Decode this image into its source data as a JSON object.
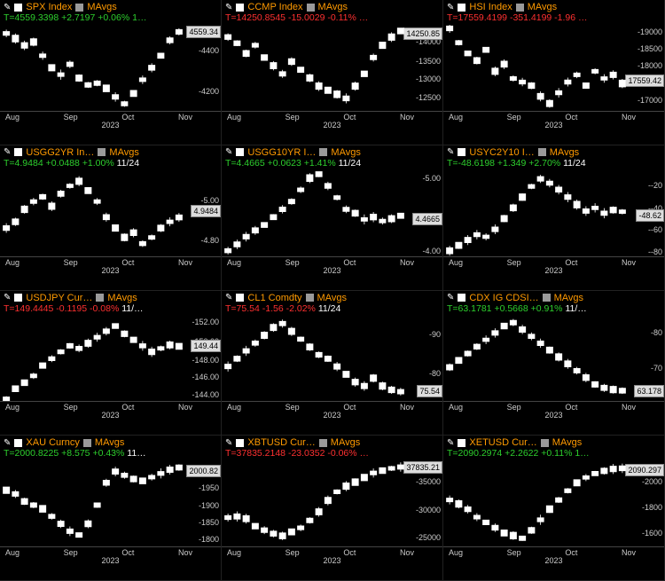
{
  "colors": {
    "bg": "#000000",
    "title": "#ff9a00",
    "up": "#2dcf2d",
    "down": "#ff3030",
    "axis": "#cccccc",
    "candle": "#ffffff",
    "tag_bg": "#dddddd"
  },
  "x_axis": {
    "months": [
      "Aug",
      "Sep",
      "Oct",
      "Nov"
    ],
    "year": "2023"
  },
  "panels": [
    {
      "title": "SPX Index",
      "mavgs": "MAvgs",
      "last": "T=4559.3398",
      "chg": "+2.7197",
      "pct": "+0.06%",
      "extra": "1…",
      "dir": "up",
      "yticks": [
        "4400",
        "4200"
      ],
      "ytick_pos": [
        0.3,
        0.78
      ],
      "tag": "4559.34",
      "tag_pos": 0.08,
      "type": "candlestick",
      "ylim": [
        4100,
        4600
      ],
      "series": [
        4550,
        4520,
        4480,
        4500,
        4420,
        4350,
        4310,
        4370,
        4290,
        4250,
        4260,
        4230,
        4180,
        4140,
        4200,
        4280,
        4350,
        4420,
        4510,
        4559
      ]
    },
    {
      "title": "CCMP Index",
      "mavgs": "MAvgs",
      "last": "T=14250.8545",
      "chg": "-15.0029",
      "pct": "-0.11%",
      "extra": "…",
      "dir": "down",
      "yticks": [
        "14000",
        "13500",
        "13000",
        "12500"
      ],
      "ytick_pos": [
        0.2,
        0.42,
        0.63,
        0.85
      ],
      "tag": "14250.85",
      "tag_pos": 0.1,
      "type": "candlestick",
      "ylim": [
        12300,
        14400
      ],
      "series": [
        14100,
        13950,
        13700,
        13900,
        13600,
        13400,
        13200,
        13500,
        13300,
        13100,
        12900,
        12800,
        12700,
        12600,
        12900,
        13200,
        13600,
        13900,
        14100,
        14250
      ]
    },
    {
      "title": "HSI Index",
      "mavgs": "MAvgs",
      "last": "T=17559.4199",
      "chg": "-351.4199",
      "pct": "-1.96",
      "extra": "…",
      "dir": "down",
      "yticks": [
        "19000",
        "18500",
        "18000",
        "17000"
      ],
      "ytick_pos": [
        0.08,
        0.28,
        0.48,
        0.88
      ],
      "tag": "17559.42",
      "tag_pos": 0.65,
      "type": "candlestick",
      "ylim": [
        16800,
        19200
      ],
      "series": [
        19100,
        18700,
        18400,
        18200,
        18500,
        17900,
        18100,
        17700,
        17600,
        17500,
        17200,
        17000,
        17300,
        17600,
        17800,
        17500,
        17900,
        17700,
        17800,
        17559
      ]
    },
    {
      "title": "USGG2YR In…",
      "mavgs": "MAvgs",
      "last": "T=4.9484",
      "chg": "+0.0488",
      "pct": "+1.00%",
      "extra": "11/24",
      "dir": "up",
      "extra_white": true,
      "yticks": [
        "5.00",
        "4.80"
      ],
      "ytick_pos": [
        0.35,
        0.82
      ],
      "tag": "4.9484",
      "tag_pos": 0.48,
      "type": "candlestick",
      "ylim": [
        4.7,
        5.25
      ],
      "series": [
        4.88,
        4.92,
        5.0,
        5.05,
        5.08,
        5.02,
        5.1,
        5.15,
        5.18,
        5.12,
        5.05,
        4.95,
        4.88,
        4.82,
        4.85,
        4.78,
        4.82,
        4.88,
        4.92,
        4.948
      ]
    },
    {
      "title": "USGG10YR I…",
      "mavgs": "MAvgs",
      "last": "T=4.4665",
      "chg": "+0.0623",
      "pct": "+1.41%",
      "extra": "11/24",
      "dir": "up",
      "extra_white": true,
      "yticks": [
        "5.00",
        "4.50",
        "4.00"
      ],
      "ytick_pos": [
        0.1,
        0.54,
        0.94
      ],
      "tag": "4.4665",
      "tag_pos": 0.57,
      "type": "candlestick",
      "ylim": [
        3.95,
        5.05
      ],
      "series": [
        4.02,
        4.1,
        4.2,
        4.28,
        4.35,
        4.45,
        4.55,
        4.65,
        4.8,
        4.95,
        5.0,
        4.85,
        4.7,
        4.55,
        4.5,
        4.42,
        4.45,
        4.4,
        4.43,
        4.467
      ]
    },
    {
      "title": "USYC2Y10 I…",
      "mavgs": "MAvgs",
      "last": "T=-48.6198",
      "chg": "+1.349",
      "pct": "+2.70%",
      "extra": "11/24",
      "dir": "up",
      "extra_white": true,
      "yticks": [
        "-20",
        "-40",
        "-60",
        "-80"
      ],
      "ytick_pos": [
        0.18,
        0.45,
        0.7,
        0.95
      ],
      "tag": "-48.62",
      "tag_pos": 0.53,
      "type": "candlestick",
      "ylim": [
        -90,
        -10
      ],
      "series": [
        -85,
        -80,
        -75,
        -70,
        -72,
        -65,
        -55,
        -45,
        -35,
        -25,
        -18,
        -22,
        -28,
        -35,
        -42,
        -48,
        -45,
        -50,
        -47,
        -48.6
      ]
    },
    {
      "title": "USDJPY Cur…",
      "mavgs": "MAvgs",
      "last": "T=149.4445",
      "chg": "-0.1195",
      "pct": "-0.08%",
      "extra": "11/…",
      "dir": "down",
      "extra_white": true,
      "yticks": [
        "152.00",
        "150.00",
        "148.00",
        "146.00",
        "144.00"
      ],
      "ytick_pos": [
        0.08,
        0.3,
        0.52,
        0.72,
        0.92
      ],
      "tag": "149.44",
      "tag_pos": 0.36,
      "type": "candlestick",
      "ylim": [
        143,
        153
      ],
      "series": [
        143.2,
        144.5,
        145.2,
        146.0,
        147.2,
        148.0,
        148.8,
        149.5,
        149.2,
        149.8,
        150.5,
        151.2,
        151.8,
        150.9,
        150.2,
        149.5,
        148.8,
        149.2,
        149.6,
        149.44
      ]
    },
    {
      "title": "CL1 Comdty",
      "mavgs": "MAvgs",
      "last": "T=75.54",
      "chg": "-1.56",
      "pct": "-2.02%",
      "extra": "11/24",
      "dir": "down",
      "extra_white": true,
      "yticks": [
        "90",
        "80"
      ],
      "ytick_pos": [
        0.22,
        0.68
      ],
      "tag": "75.54",
      "tag_pos": 0.88,
      "type": "candlestick",
      "ylim": [
        73,
        95
      ],
      "series": [
        82,
        84,
        86,
        88,
        90,
        92,
        93,
        91,
        89,
        87,
        85,
        84,
        82,
        80,
        78,
        77,
        79,
        77,
        76,
        75.54
      ]
    },
    {
      "title": "CDX IG CDSI…",
      "mavgs": "MAvgs",
      "last": "T=63.1781",
      "chg": "+0.5668",
      "pct": "+0.91%",
      "extra": "11/…",
      "dir": "up",
      "extra_white": true,
      "yticks": [
        "80",
        "70"
      ],
      "ytick_pos": [
        0.2,
        0.62
      ],
      "tag": "63.178",
      "tag_pos": 0.88,
      "type": "candlestick",
      "ylim": [
        60,
        85
      ],
      "series": [
        70,
        72,
        74,
        76,
        78,
        80,
        82,
        83,
        81,
        79,
        77,
        75,
        73,
        71,
        69,
        67,
        65,
        64,
        63.5,
        63.18
      ]
    },
    {
      "title": "XAU Curncy",
      "mavgs": "MAvgs",
      "last": "T=2000.8225",
      "chg": "+8.575",
      "pct": "+0.43%",
      "extra": "11…",
      "dir": "up",
      "extra_white": true,
      "yticks": [
        "2000",
        "1950",
        "1900",
        "1850",
        "1800"
      ],
      "ytick_pos": [
        0.12,
        0.32,
        0.52,
        0.72,
        0.92
      ],
      "tag": "2000.82",
      "tag_pos": 0.12,
      "type": "candlestick",
      "ylim": [
        1790,
        2020
      ],
      "series": [
        1940,
        1930,
        1910,
        1900,
        1890,
        1870,
        1850,
        1830,
        1820,
        1850,
        1900,
        1960,
        1990,
        1980,
        1970,
        1965,
        1975,
        1985,
        1995,
        2000.8
      ]
    },
    {
      "title": "XBTUSD Cur…",
      "mavgs": "MAvgs",
      "last": "T=37835.2148",
      "chg": "-23.0352",
      "pct": "-0.06%",
      "extra": "…",
      "dir": "down",
      "yticks": [
        "35000",
        "30000",
        "25000"
      ],
      "ytick_pos": [
        0.25,
        0.58,
        0.9
      ],
      "tag": "37835.21",
      "tag_pos": 0.08,
      "type": "candlestick",
      "ylim": [
        24000,
        39000
      ],
      "series": [
        29000,
        29200,
        28800,
        27500,
        26800,
        26200,
        25800,
        26500,
        27200,
        28500,
        30000,
        32000,
        33500,
        34500,
        35200,
        36000,
        36800,
        37200,
        37600,
        37835
      ]
    },
    {
      "title": "XETUSD Cur…",
      "mavgs": "MAvgs",
      "last": "T=2090.2974",
      "chg": "+2.2622",
      "pct": "+0.11%",
      "extra": "1…",
      "dir": "up",
      "yticks": [
        "2000",
        "1800",
        "1600"
      ],
      "ytick_pos": [
        0.25,
        0.55,
        0.85
      ],
      "tag": "2090.297",
      "tag_pos": 0.11,
      "type": "candlestick",
      "ylim": [
        1500,
        2150
      ],
      "series": [
        1850,
        1820,
        1780,
        1720,
        1680,
        1640,
        1600,
        1580,
        1560,
        1620,
        1700,
        1780,
        1850,
        1920,
        1980,
        2020,
        2050,
        2070,
        2085,
        2090
      ]
    }
  ]
}
